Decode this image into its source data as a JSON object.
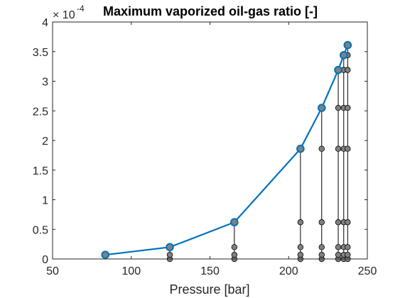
{
  "chart_data": {
    "type": "line",
    "title": "Maximum vaporized oil-gas ratio [-]",
    "xlabel": "Pressure [bar]",
    "ylabel": "",
    "xlim": [
      50,
      250
    ],
    "ylim": [
      0,
      4
    ],
    "y_exponent_label": "× 10",
    "y_exponent": "-4",
    "y_multiplier": 0.0001,
    "xticks": [
      50,
      100,
      150,
      200,
      250
    ],
    "yticks": [
      0,
      0.5,
      1,
      1.5,
      2,
      2.5,
      3,
      3.5,
      4
    ],
    "grid": false,
    "legend": "none",
    "series": [
      {
        "x": [
          83.5,
          124.5,
          165.5,
          207.5,
          221,
          231.5,
          235,
          237.5
        ],
        "y": [
          0.07,
          0.2,
          0.62,
          1.86,
          2.55,
          3.19,
          3.44,
          3.61
        ],
        "color": "#0072BD"
      }
    ],
    "undersaturated_points": [
      {
        "x": 124.5,
        "y": [
          0,
          0.07
        ]
      },
      {
        "x": 165.5,
        "y": [
          0,
          0.07,
          0.2
        ]
      },
      {
        "x": 207.5,
        "y": [
          0,
          0.07,
          0.2,
          0.62
        ]
      },
      {
        "x": 221,
        "y": [
          0,
          0.07,
          0.2,
          0.62,
          1.86
        ]
      },
      {
        "x": 231.5,
        "y": [
          0,
          0.07,
          0.2,
          0.62,
          1.86,
          2.55
        ]
      },
      {
        "x": 235,
        "y": [
          0,
          0.07,
          0.2,
          0.62,
          1.86,
          2.55,
          3.19
        ]
      },
      {
        "x": 237.5,
        "y": [
          0,
          0.07,
          0.2,
          0.62,
          1.86,
          2.55,
          3.19,
          3.44
        ]
      }
    ],
    "marker_color": "#808080",
    "main_line_color": "#0072BD"
  }
}
